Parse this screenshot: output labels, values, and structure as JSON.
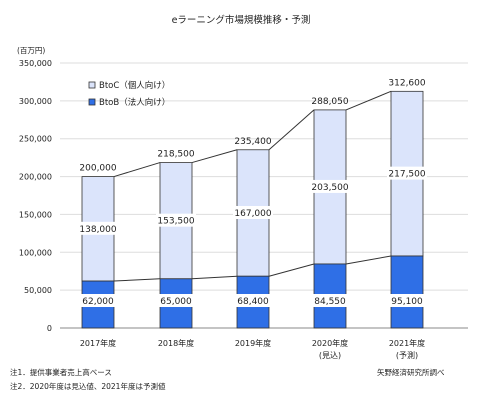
{
  "header": {
    "title": "eラーニング市場規模推移・予測",
    "unit": "(百万円)"
  },
  "notes": [
    "注1．提供事業者売上高ベース",
    "注2．2020年度は見込値、2021年度は予測値"
  ],
  "source": "矢野経済研究所調べ",
  "colors": {
    "btob": "#2f6fe6",
    "btoc": "#dbe4fb",
    "border": "#333333",
    "grid": "#dddddd"
  },
  "chart_data": {
    "type": "bar",
    "stacked": true,
    "categories": [
      "2017年度",
      "2018年度",
      "2019年度",
      "2020年度",
      "2021年度"
    ],
    "category_sublabels": [
      "",
      "",
      "",
      "(見込)",
      "(予測)"
    ],
    "series": [
      {
        "name": "BtoB（法人向け）",
        "values": [
          62000,
          65000,
          68400,
          84550,
          95100
        ],
        "labels": [
          "62,000",
          "65,000",
          "68,400",
          "84,550",
          "95,100"
        ]
      },
      {
        "name": "BtoC（個人向け）",
        "values": [
          138000,
          153500,
          167000,
          203500,
          217500
        ],
        "labels": [
          "138,000",
          "153,500",
          "167,000",
          "203,500",
          "217,500"
        ]
      }
    ],
    "totals": [
      200000,
      218500,
      235400,
      288050,
      312600
    ],
    "total_labels": [
      "200,000",
      "218,500",
      "235,400",
      "288,050",
      "312,600"
    ],
    "legend_order": [
      "BtoC（個人向け）",
      "BtoB（法人向け）"
    ],
    "ylim": [
      0,
      350000
    ],
    "yticks": [
      0,
      50000,
      100000,
      150000,
      200000,
      250000,
      300000,
      350000
    ],
    "ytick_labels": [
      "0",
      "50,000",
      "100,000",
      "150,000",
      "200,000",
      "250,000",
      "300,000",
      "350,000"
    ],
    "grid": true,
    "legend_position": "top-left",
    "connector_lines": true
  }
}
